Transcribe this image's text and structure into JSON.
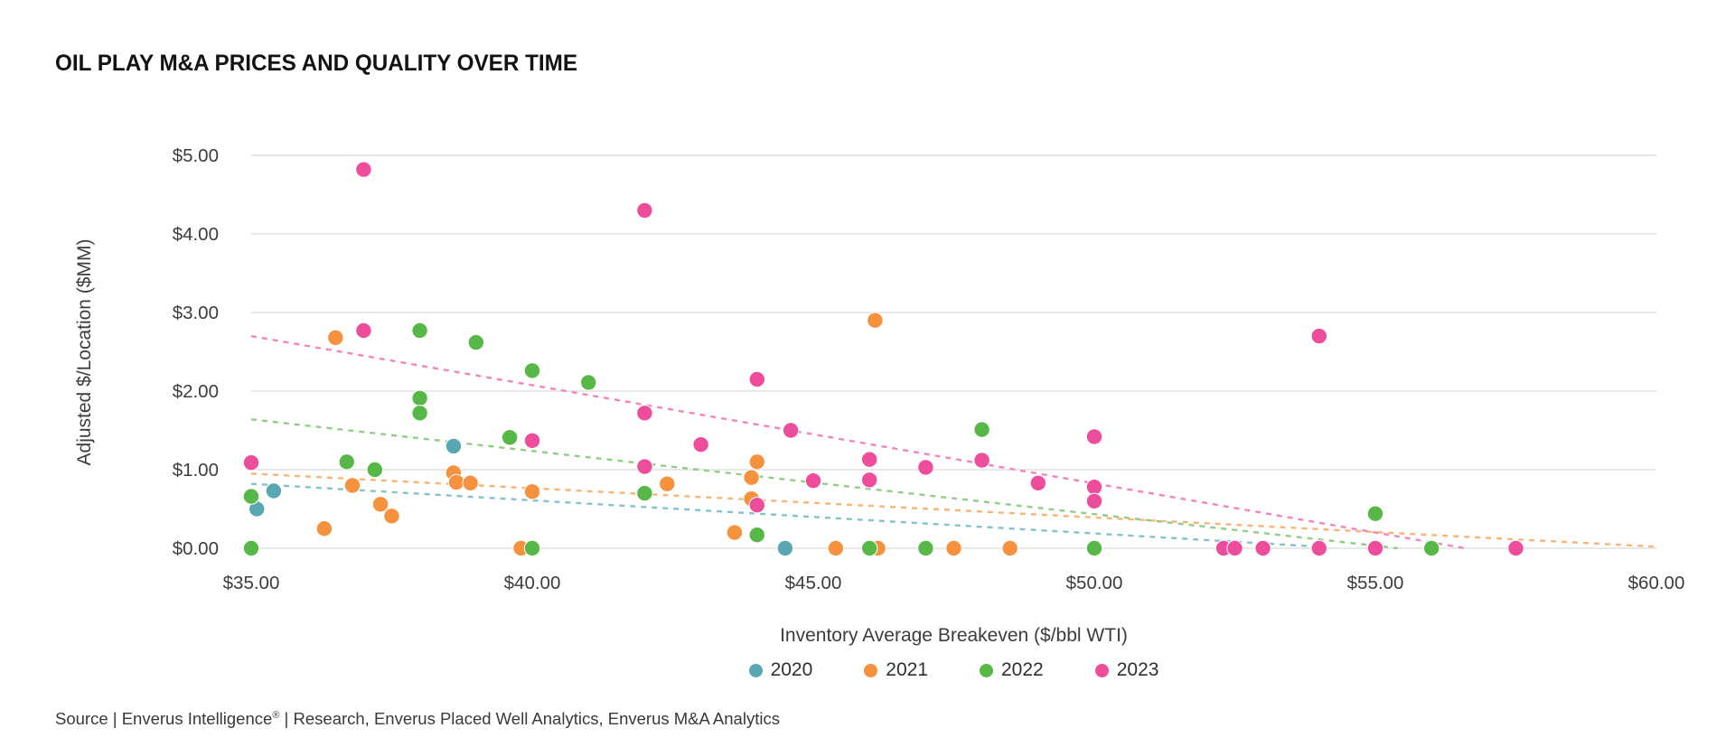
{
  "title": "OIL PLAY M&A PRICES AND QUALITY OVER TIME",
  "source": {
    "prefix": "Source | Enverus Intelligence",
    "registered": "®",
    "suffix": " | Research, Enverus Placed Well Analytics, Enverus M&A Analytics"
  },
  "legend": {
    "items": [
      "2020",
      "2021",
      "2022",
      "2023"
    ]
  },
  "chart_data": {
    "type": "scatter",
    "title": "OIL PLAY M&A PRICES AND QUALITY OVER TIME",
    "xlabel": "Inventory Average Breakeven ($/bbl WTI)",
    "ylabel": "Adjusted $/Location ($MM)",
    "xlim": [
      35,
      60
    ],
    "ylim": [
      0,
      5
    ],
    "x_tick_values": [
      35,
      40,
      45,
      50,
      55,
      60
    ],
    "x_ticks": [
      "$35.00",
      "$40.00",
      "$45.00",
      "$50.00",
      "$55.00",
      "$60.00"
    ],
    "y_tick_values": [
      0,
      1,
      2,
      3,
      4,
      5
    ],
    "y_ticks": [
      "$0.00",
      "$1.00",
      "$2.00",
      "$3.00",
      "$4.00",
      "$5.00"
    ],
    "grid": true,
    "gridline_color": "#e0e0e0",
    "axis_text_color": "#3c3c3c",
    "legend_position": "bottom",
    "marker_radius": 8.7,
    "series": [
      {
        "name": "2020",
        "color": "#58a7b3",
        "trend_color": "#85c2cc",
        "points": [
          [
            35.4,
            0.73
          ],
          [
            35.1,
            0.5
          ],
          [
            38.6,
            1.3
          ],
          [
            44.5,
            0.0
          ]
        ],
        "trend": [
          [
            35,
            0.82
          ],
          [
            54,
            0.02
          ]
        ]
      },
      {
        "name": "2021",
        "color": "#f6913d",
        "trend_color": "#f9b577",
        "points": [
          [
            36.3,
            0.25
          ],
          [
            36.5,
            2.68
          ],
          [
            36.8,
            0.8
          ],
          [
            37.3,
            0.56
          ],
          [
            37.5,
            0.41
          ],
          [
            38.6,
            0.96
          ],
          [
            38.65,
            0.84
          ],
          [
            38.9,
            0.83
          ],
          [
            39.8,
            0.0
          ],
          [
            40.0,
            0.72
          ],
          [
            42.4,
            0.82
          ],
          [
            43.6,
            0.2
          ],
          [
            43.9,
            0.9
          ],
          [
            43.9,
            0.63
          ],
          [
            44.0,
            1.1
          ],
          [
            45.4,
            0.0
          ],
          [
            46.1,
            2.9
          ],
          [
            46.15,
            0.0
          ],
          [
            47.5,
            0.0
          ],
          [
            48.5,
            0.0
          ]
        ],
        "trend": [
          [
            35,
            0.95
          ],
          [
            60,
            0.02
          ]
        ]
      },
      {
        "name": "2022",
        "color": "#57b847",
        "trend_color": "#8fce85",
        "points": [
          [
            35.0,
            0.66
          ],
          [
            35.0,
            0.0
          ],
          [
            36.7,
            1.1
          ],
          [
            37.2,
            1.0
          ],
          [
            38.0,
            2.77
          ],
          [
            38.0,
            1.91
          ],
          [
            38.0,
            1.72
          ],
          [
            39.0,
            2.62
          ],
          [
            39.6,
            1.41
          ],
          [
            40.0,
            2.26
          ],
          [
            40.0,
            0.0
          ],
          [
            41.0,
            2.11
          ],
          [
            42.0,
            0.7
          ],
          [
            44.0,
            0.17
          ],
          [
            46.0,
            0.0
          ],
          [
            47.0,
            0.0
          ],
          [
            48.0,
            1.51
          ],
          [
            50.0,
            0.0
          ],
          [
            55.0,
            0.44
          ],
          [
            56.0,
            0.0
          ]
        ],
        "trend": [
          [
            35,
            1.64
          ],
          [
            55.4,
            0.0
          ]
        ]
      },
      {
        "name": "2023",
        "color": "#ee4d9b",
        "trend_color": "#f384bd",
        "points": [
          [
            35.0,
            1.09
          ],
          [
            37.0,
            4.82
          ],
          [
            37.0,
            2.77
          ],
          [
            40.0,
            1.37
          ],
          [
            42.0,
            4.3
          ],
          [
            42.0,
            1.72
          ],
          [
            42.0,
            1.04
          ],
          [
            43.0,
            1.32
          ],
          [
            44.0,
            2.15
          ],
          [
            44.0,
            0.55
          ],
          [
            44.6,
            1.5
          ],
          [
            45.0,
            0.86
          ],
          [
            46.0,
            1.13
          ],
          [
            46.0,
            0.87
          ],
          [
            47.0,
            1.03
          ],
          [
            48.0,
            1.12
          ],
          [
            49.0,
            0.83
          ],
          [
            50.0,
            1.42
          ],
          [
            50.0,
            0.78
          ],
          [
            50.0,
            0.6
          ],
          [
            52.3,
            0.0
          ],
          [
            52.5,
            0.0
          ],
          [
            53.0,
            0.0
          ],
          [
            54.0,
            2.7
          ],
          [
            54.0,
            0.0
          ],
          [
            55.0,
            0.0
          ],
          [
            57.5,
            0.0
          ]
        ],
        "trend": [
          [
            35,
            2.7
          ],
          [
            56.6,
            0.0
          ]
        ]
      }
    ]
  }
}
